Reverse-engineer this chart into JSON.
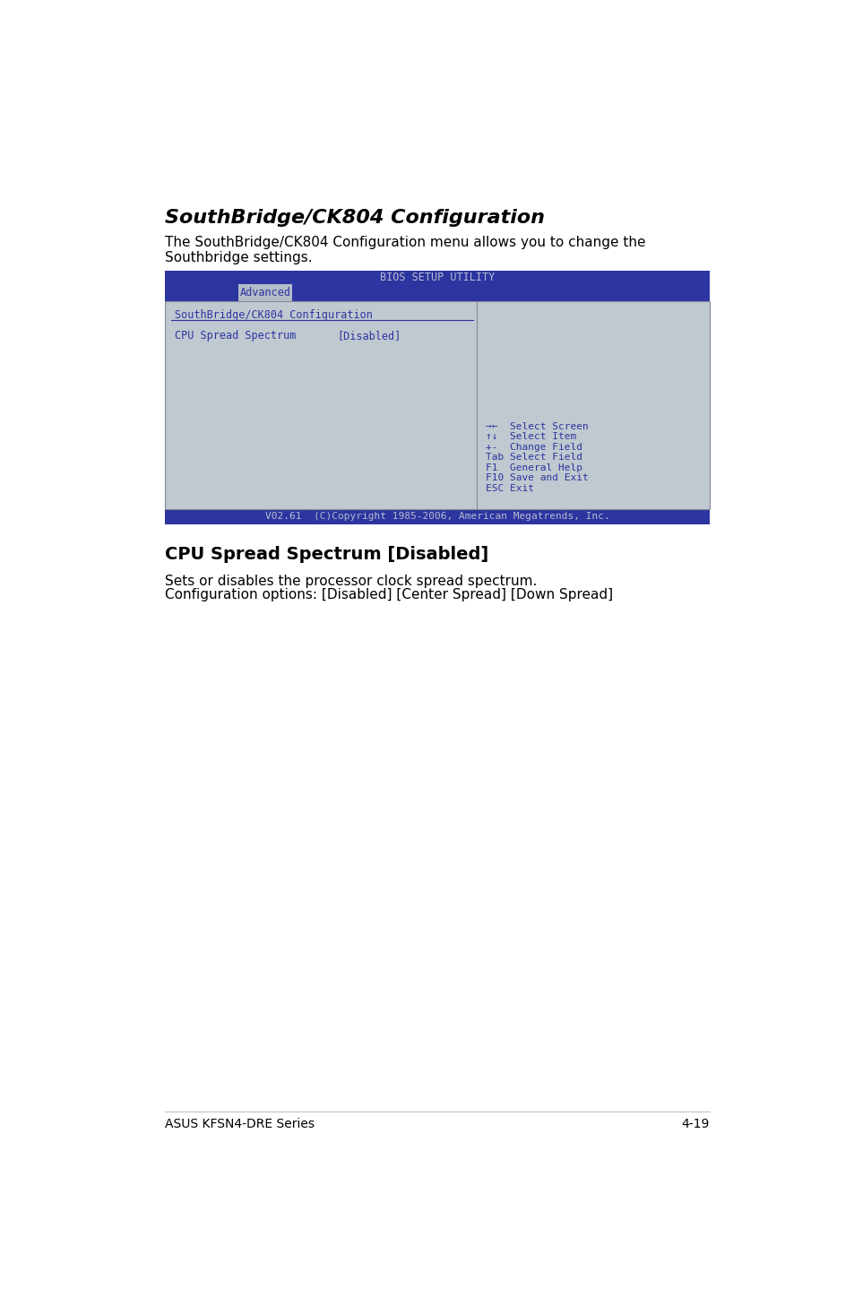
{
  "title": "SouthBridge/CK804 Configuration",
  "intro_text_line1": "The SouthBridge/CK804 Configuration menu allows you to change the",
  "intro_text_line2": "Southbridge settings.",
  "bios_header": "BIOS SETUP UTILITY",
  "bios_tab": "Advanced",
  "bios_section_title": "SouthBridge/CK804 Configuration",
  "bios_item_label": "CPU Spread Spectrum",
  "bios_item_value": "[Disabled]",
  "bios_footer": "V02.61  (C)Copyright 1985-2006, American Megatrends, Inc.",
  "help_lines": [
    "→←  Select Screen",
    "↑↓  Select Item",
    "+-  Change Field",
    "Tab Select Field",
    "F1  General Help",
    "F10 Save and Exit",
    "ESC Exit"
  ],
  "section2_title": "CPU Spread Spectrum [Disabled]",
  "section2_text1": "Sets or disables the processor clock spread spectrum.",
  "section2_text2": "Configuration options: [Disabled] [Center Spread] [Down Spread]",
  "footer_left": "ASUS KFSN4-DRE Series",
  "footer_right": "4-19",
  "bg_color": "#ffffff",
  "bios_header_bg": "#2c35a0",
  "bios_header_text_color": "#b8bcd0",
  "bios_tab_bg": "#b4bcc8",
  "bios_tab_text_color": "#2c35a0",
  "bios_body_bg": "#c0c8d0",
  "bios_text_color": "#2c35a0",
  "bios_footer_bg": "#2c35a0",
  "bios_footer_text_color": "#b8bcd0",
  "bios_divider_color": "#2c35a0",
  "bios_border_color": "#888899",
  "title_fontsize": 16,
  "intro_fontsize": 11,
  "bios_header_fontsize": 8.5,
  "bios_body_fontsize": 8.5,
  "section2_title_fontsize": 14,
  "section2_text_fontsize": 11,
  "footer_fontsize": 10
}
